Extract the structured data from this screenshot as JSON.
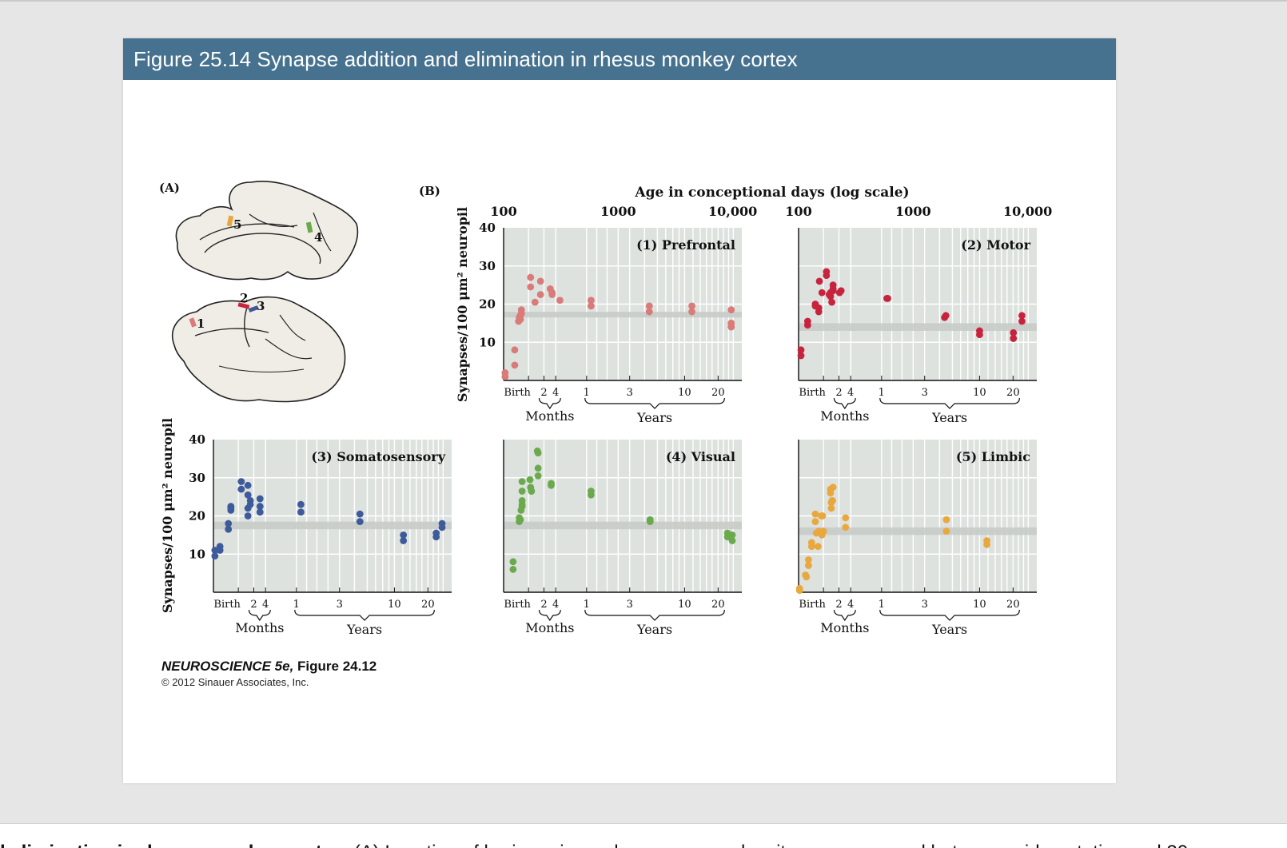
{
  "slide": {
    "title": "Figure 25.14  Synapse addition and elimination in rhesus monkey cortex",
    "panel_a_label": "(A)",
    "panel_b_label": "(B)",
    "top_axis_title": "Age in conceptional days (log scale)",
    "top_axis_ticks": [
      "100",
      "1000",
      "10,000"
    ],
    "y_axis_title": "Synapses/100 μm² neuropil",
    "credit_title_italic": "NEUROSCIENCE 5e,",
    "credit_title_rest": " Figure 24.12",
    "credit_copyright": "© 2012 Sinauer Associates, Inc.",
    "brain_region_labels": [
      "1",
      "2",
      "3",
      "4",
      "5"
    ]
  },
  "caption": {
    "bold": "d elimination in rhesus monkey cortex.",
    "rest": " (A) Location of brain regions where synapse density was measured between mid-gestation and 20"
  },
  "colors": {
    "header": "#46728f",
    "plot_bg": "#dde2df",
    "band": "#c8ccc9",
    "prefrontal": "#d97b78",
    "motor": "#c8233d",
    "somatosensory": "#3d5a9b",
    "visual": "#6aaa4c",
    "limbic": "#e8a83f"
  },
  "chart_data": [
    {
      "type": "scatter",
      "title": "(1) Prefrontal",
      "xlabel": "Age in conceptional days (log scale)",
      "ylabel": "Synapses/100 μm² neuropil",
      "x_scale": "log",
      "xlim": [
        100,
        12000
      ],
      "ylim": [
        0,
        40
      ],
      "y_ticks": [
        "40",
        "30",
        "20",
        "10"
      ],
      "x_bottom_ticks": [
        "Birth",
        "2",
        "4",
        "1",
        "3",
        "10",
        "20"
      ],
      "x_groups": [
        "Months",
        "Years"
      ],
      "adult_band": [
        16.5,
        18
      ],
      "color": "#d97b78",
      "x": [
        103,
        103,
        125,
        125,
        135,
        137,
        140,
        140,
        143,
        143,
        172,
        172,
        188,
        210,
        210,
        255,
        265,
        265,
        310,
        580,
        580,
        1870,
        1870,
        4400,
        4400,
        9700,
        9700,
        9700,
        9700
      ],
      "y": [
        2,
        1,
        8,
        4,
        15.5,
        16.5,
        16,
        17,
        18.5,
        17.5,
        27,
        24.5,
        20.5,
        26,
        22.5,
        24,
        23,
        22.5,
        21,
        21,
        19.5,
        19.5,
        18,
        19.5,
        18,
        18.5,
        15,
        14,
        15
      ]
    },
    {
      "type": "scatter",
      "title": "(2) Motor",
      "x_scale": "log",
      "xlim": [
        100,
        12000
      ],
      "ylim": [
        0,
        40
      ],
      "x_bottom_ticks": [
        "Birth",
        "2",
        "4",
        "1",
        "3",
        "10",
        "20"
      ],
      "x_groups": [
        "Months",
        "Years"
      ],
      "adult_band": [
        13,
        15
      ],
      "color": "#c8233d",
      "x": [
        105,
        105,
        120,
        120,
        140,
        140,
        150,
        150,
        152,
        160,
        175,
        175,
        185,
        190,
        190,
        195,
        200,
        200,
        200,
        228,
        235,
        590,
        600,
        1880,
        1930,
        3800,
        3800,
        7500,
        7500,
        8900,
        8900
      ],
      "y": [
        8,
        6.5,
        15.5,
        14.5,
        20,
        19.5,
        19,
        18,
        26,
        23,
        28.5,
        27.5,
        22.5,
        23,
        22,
        20.5,
        25,
        24,
        23.5,
        23,
        23.5,
        21.5,
        21.5,
        16.5,
        17,
        13,
        12,
        12.5,
        11,
        17,
        15.5
      ]
    },
    {
      "type": "scatter",
      "title": "(3) Somatosensory",
      "ylabel": "Synapses/100 μm² neuropil",
      "x_scale": "log",
      "xlim": [
        100,
        12000
      ],
      "ylim": [
        0,
        40
      ],
      "y_ticks": [
        "40",
        "30",
        "20",
        "10"
      ],
      "x_bottom_ticks": [
        "Birth",
        "2",
        "4",
        "1",
        "3",
        "10",
        "20"
      ],
      "x_groups": [
        "Months",
        "Years"
      ],
      "adult_band": [
        16.5,
        18.5
      ],
      "color": "#3d5a9b",
      "x": [
        103,
        103,
        114,
        114,
        135,
        135,
        142,
        142,
        142,
        175,
        175,
        200,
        200,
        200,
        200,
        210,
        210,
        255,
        255,
        255,
        580,
        580,
        1900,
        1900,
        4550,
        4550,
        8800,
        8800,
        9900,
        9900
      ],
      "y": [
        11,
        9.5,
        12,
        11,
        18,
        16.5,
        22,
        21.5,
        22.5,
        29,
        27,
        28,
        25.5,
        22,
        20,
        24,
        23,
        24.5,
        22.5,
        21,
        23,
        21,
        20.5,
        18.5,
        15,
        13.5,
        15.5,
        14.5,
        18,
        17
      ]
    },
    {
      "type": "scatter",
      "title": "(4) Visual",
      "x_scale": "log",
      "xlim": [
        100,
        12000
      ],
      "ylim": [
        0,
        40
      ],
      "x_bottom_ticks": [
        "Birth",
        "2",
        "4",
        "1",
        "3",
        "10",
        "20"
      ],
      "x_groups": [
        "Months",
        "Years"
      ],
      "adult_band": [
        16.5,
        18.5
      ],
      "color": "#6aaa4c",
      "x": [
        121,
        121,
        137,
        137,
        140,
        142,
        145,
        145,
        145,
        145,
        145,
        170,
        172,
        175,
        175,
        197,
        200,
        200,
        200,
        260,
        260,
        580,
        580,
        1900,
        1900,
        9000,
        9000,
        9900,
        9900
      ],
      "y": [
        8,
        6,
        19.5,
        18.5,
        19,
        21.5,
        22.5,
        24,
        26.5,
        29,
        23,
        29.5,
        27.5,
        26.5,
        26.5,
        37,
        36.5,
        32.5,
        30.5,
        28.5,
        28,
        26.5,
        25.5,
        19,
        18.5,
        15.5,
        14.5,
        15,
        13.5
      ]
    },
    {
      "type": "scatter",
      "title": "(5) Limbic",
      "x_scale": "log",
      "xlim": [
        100,
        12000
      ],
      "ylim": [
        0,
        40
      ],
      "x_bottom_ticks": [
        "Birth",
        "2",
        "4",
        "1",
        "3",
        "10",
        "20"
      ],
      "x_groups": [
        "Months",
        "Years"
      ],
      "adult_band": [
        15,
        17
      ],
      "color": "#e8a83f",
      "x": [
        102,
        102,
        115,
        117,
        122,
        122,
        130,
        130,
        140,
        140,
        143,
        148,
        150,
        158,
        160,
        162,
        165,
        190,
        190,
        193,
        193,
        196,
        198,
        200,
        257,
        257,
        1950,
        1950,
        4400,
        4400
      ],
      "y": [
        1,
        0.5,
        4.5,
        4,
        8.5,
        7,
        13,
        12,
        20.5,
        18.5,
        15.5,
        12,
        16,
        20,
        15,
        20,
        16,
        27,
        26,
        23.5,
        22,
        24,
        24,
        27.5,
        19.5,
        17,
        19,
        16,
        13.5,
        12.5
      ]
    }
  ]
}
